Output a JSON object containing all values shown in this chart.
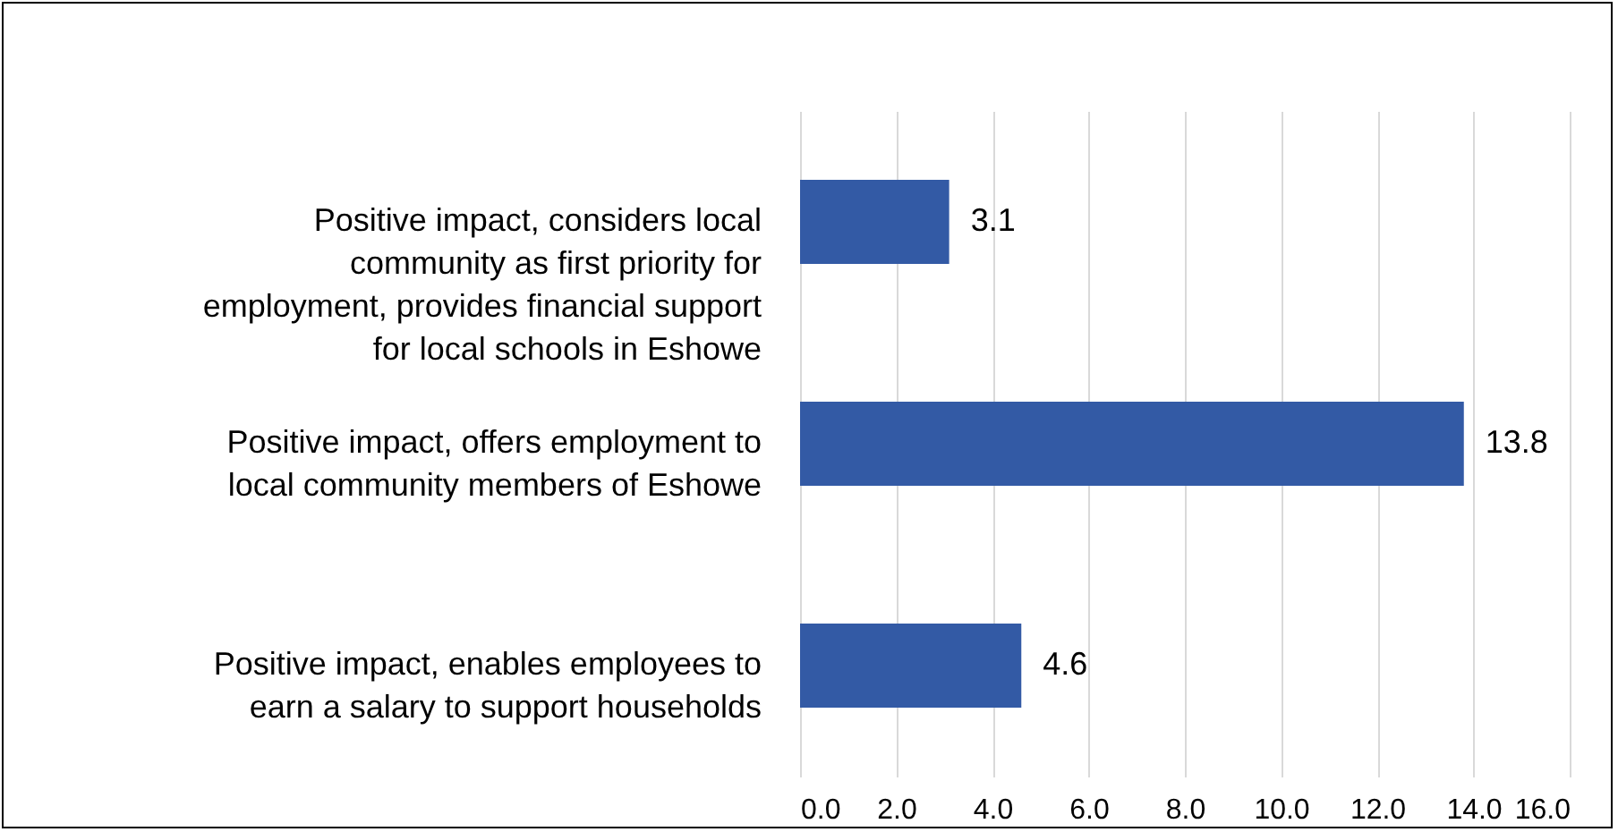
{
  "chart_data": {
    "type": "bar",
    "orientation": "horizontal",
    "categories": [
      "Positive impact, considers local community as first priority for employment, provides financial support for local schools in Eshowe",
      "Positive impact, offers employment to local community members of Eshowe",
      "Positive impact, enables employees to earn a salary to support households"
    ],
    "values": [
      3.1,
      13.8,
      4.6
    ],
    "color": "#335aa5",
    "xlim": [
      0,
      16
    ],
    "xticks": [
      {
        "value": 0,
        "label": "0.0"
      },
      {
        "value": 2,
        "label": "2.0"
      },
      {
        "value": 4,
        "label": "4.0"
      },
      {
        "value": 6,
        "label": "6.0"
      },
      {
        "value": 8,
        "label": "8.0"
      },
      {
        "value": 10,
        "label": "10.0"
      },
      {
        "value": 12,
        "label": "12.0"
      },
      {
        "value": 14,
        "label": "14.0"
      },
      {
        "value": 16,
        "label": "16.0"
      }
    ],
    "grid": "x",
    "data_labels": true
  }
}
